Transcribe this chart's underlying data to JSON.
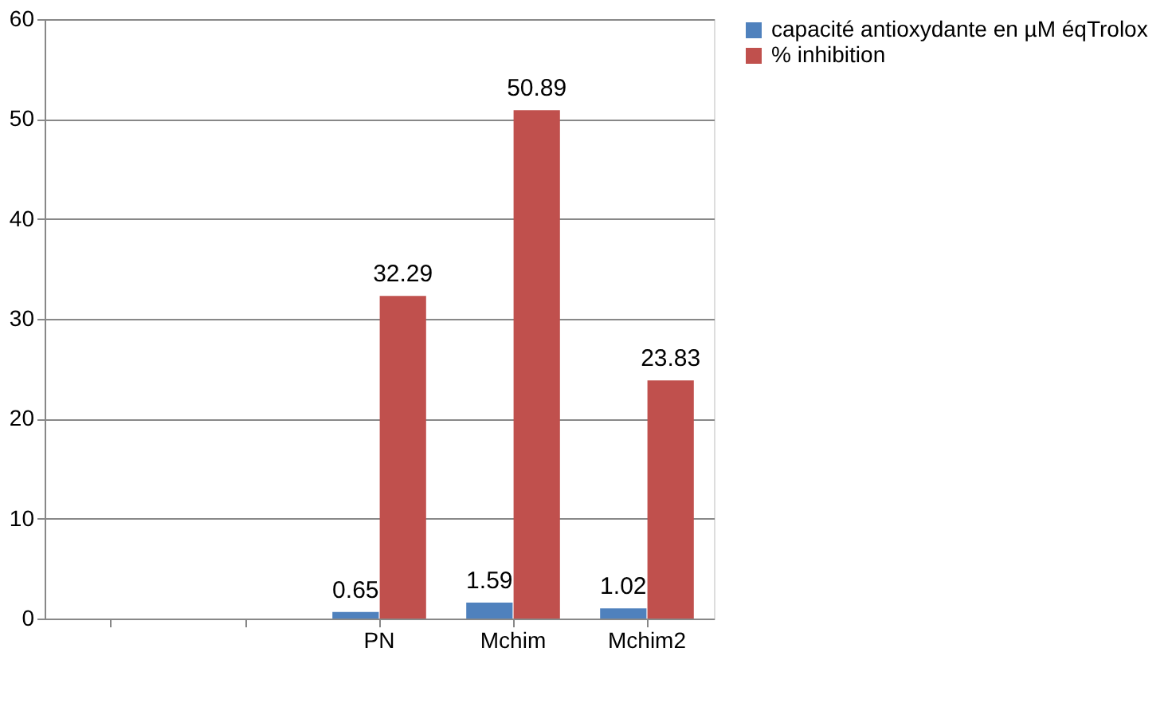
{
  "chart_data": {
    "type": "bar",
    "categories": [
      null,
      null,
      "PN",
      "Mchim",
      "Mchim2"
    ],
    "series": [
      {
        "name": "capacité antioxydante en µM éqTrolox",
        "color": "#4f81bd",
        "values": [
          null,
          null,
          0.65,
          1.59,
          1.02
        ]
      },
      {
        "name": "% inhibition",
        "color": "#c0504d",
        "values": [
          null,
          null,
          32.29,
          50.89,
          23.83
        ]
      }
    ],
    "ylim": [
      0,
      60
    ],
    "yticks": [
      0,
      10,
      20,
      30,
      40,
      50,
      60
    ],
    "grid": "y",
    "legend": "right",
    "data_labels": true
  }
}
